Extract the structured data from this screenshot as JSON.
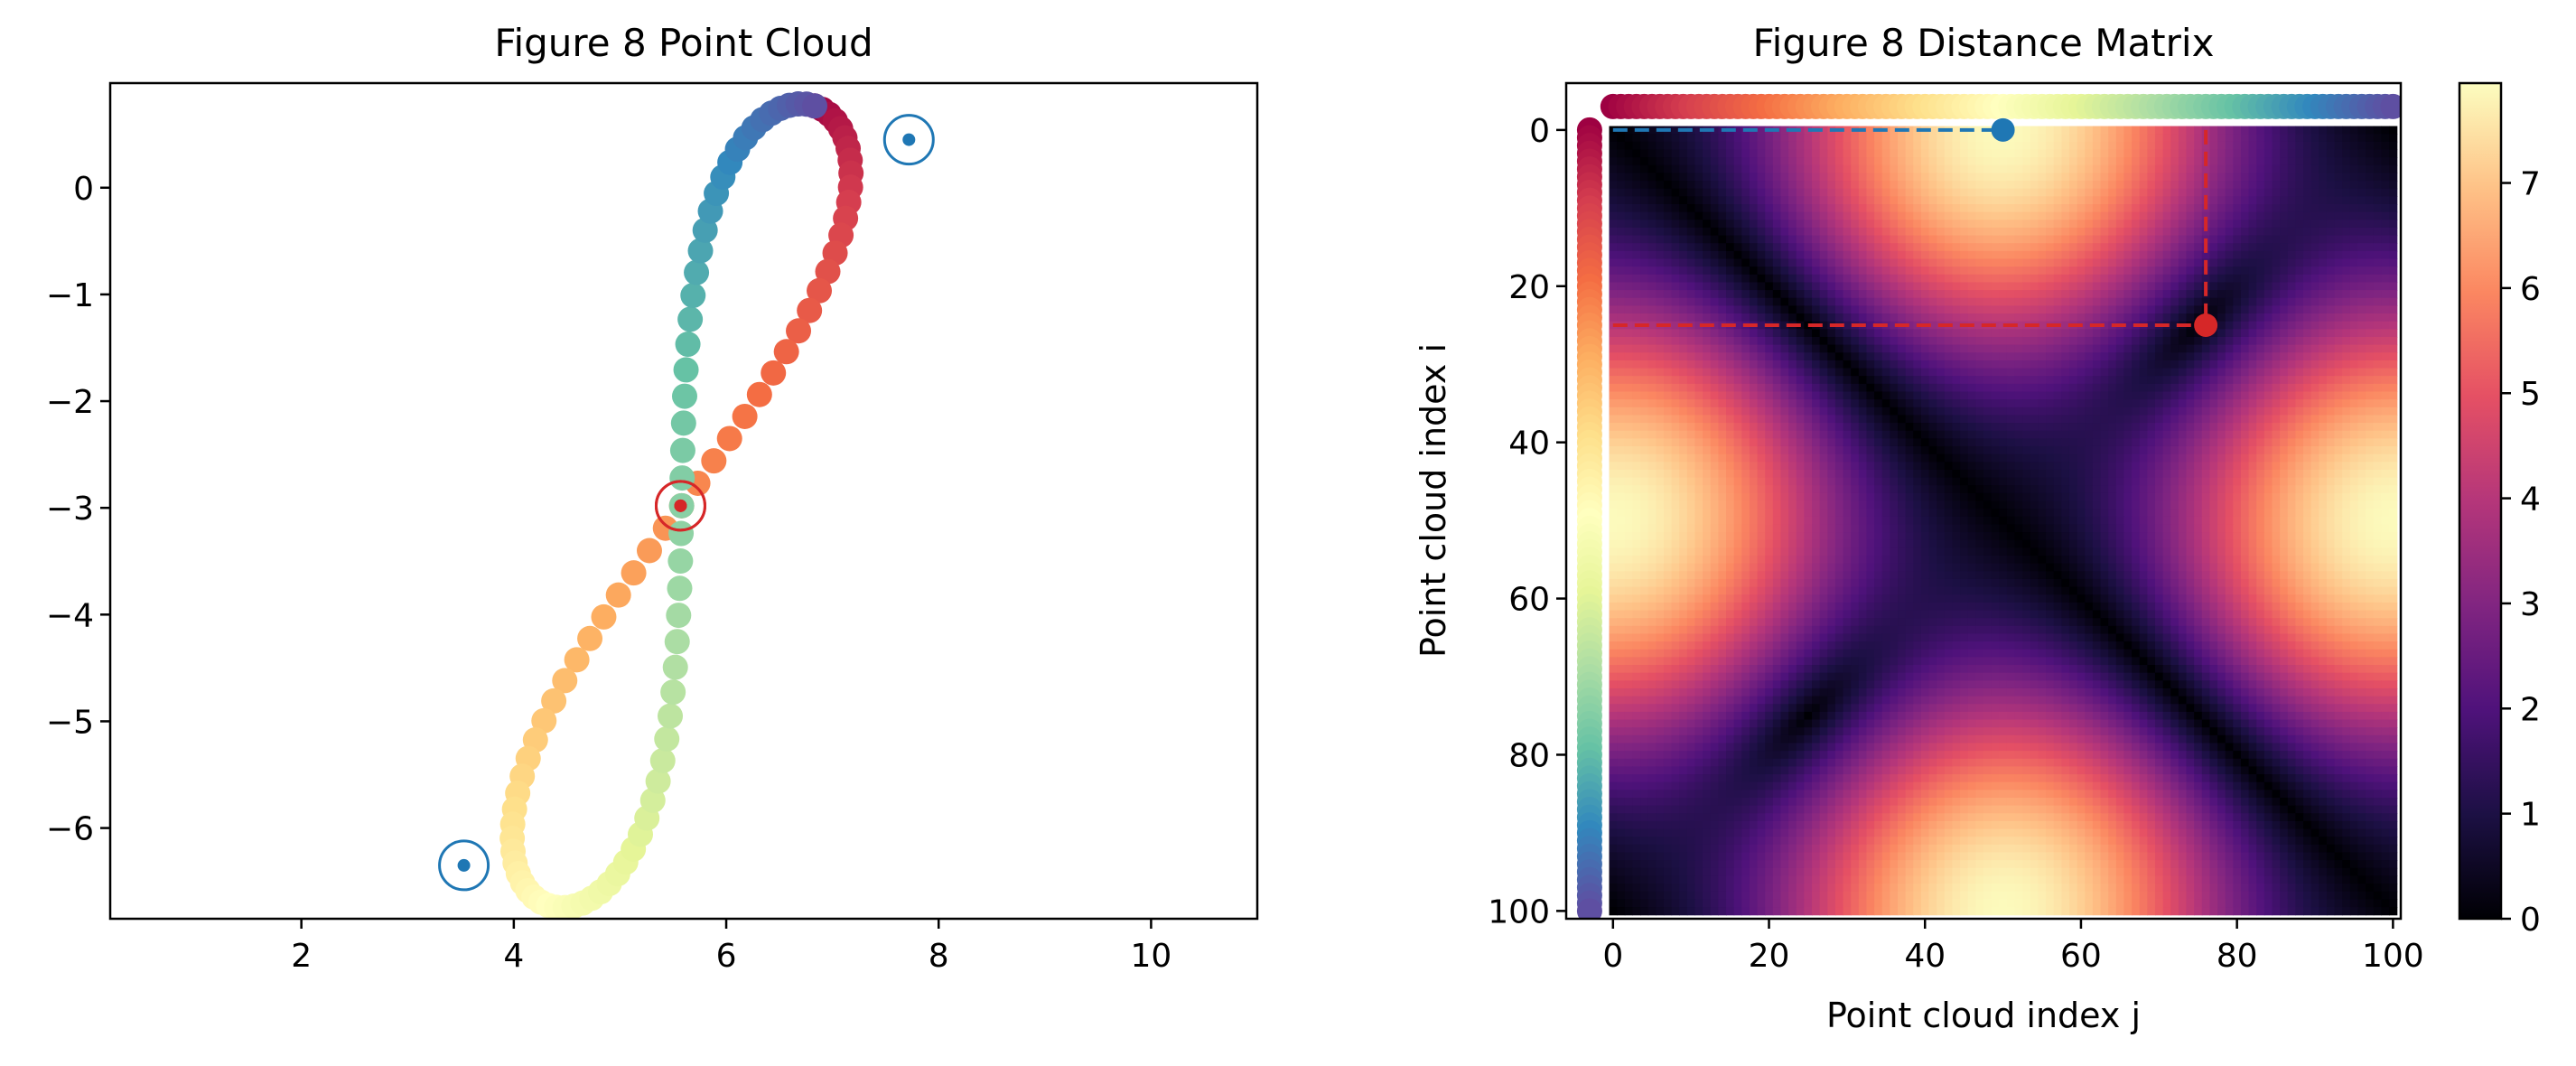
{
  "chart_data": [
    {
      "type": "scatter",
      "title": "Figure 8 Point Cloud",
      "xlabel": "",
      "ylabel": "",
      "xlim": [
        0.2,
        11.0
      ],
      "ylim": [
        -6.85,
        0.98
      ],
      "xticks": [
        2,
        4,
        6,
        8,
        10
      ],
      "yticks": [
        0,
        -1,
        -2,
        -3,
        -4,
        -5,
        -6
      ],
      "curve": {
        "kind": "figure-eight (lemniscate) of 101 points",
        "center": [
          5.58,
          -2.98
        ],
        "lobe_length": 3.95,
        "lobe_width": 0.62,
        "rotation_deg": 18.5,
        "n_points": 101
      },
      "colormap": "Spectral",
      "grid": false,
      "highlights": [
        {
          "point_index": 0,
          "color": "#1f77b4",
          "x": 7.72,
          "y": 0.45
        },
        {
          "point_index": 50,
          "color": "#1f77b4",
          "x": 3.53,
          "y": -6.35
        },
        {
          "point_index": 25,
          "color": "#d62728",
          "x": 5.57,
          "y": -2.98
        },
        {
          "point_index": 76,
          "color": "#d62728",
          "x": 5.57,
          "y": -2.98
        }
      ]
    },
    {
      "type": "heatmap",
      "title": "Figure 8 Distance Matrix",
      "xlabel": "Point cloud index j",
      "ylabel": "Point cloud index i",
      "xlim": [
        -6,
        101
      ],
      "ylim": [
        101,
        -6
      ],
      "xticks": [
        0,
        20,
        40,
        60,
        80,
        100
      ],
      "yticks": [
        0,
        20,
        40,
        60,
        80,
        100
      ],
      "colormap": "magma",
      "colorbar": {
        "min": 0,
        "max": 7.95,
        "ticks": [
          0,
          1,
          2,
          3,
          4,
          5,
          6,
          7
        ]
      },
      "n": 101,
      "highlights": [
        {
          "i": 0,
          "j": 50,
          "color": "#1f77b4"
        },
        {
          "i": 25,
          "j": 76,
          "color": "#d62728"
        }
      ]
    }
  ]
}
